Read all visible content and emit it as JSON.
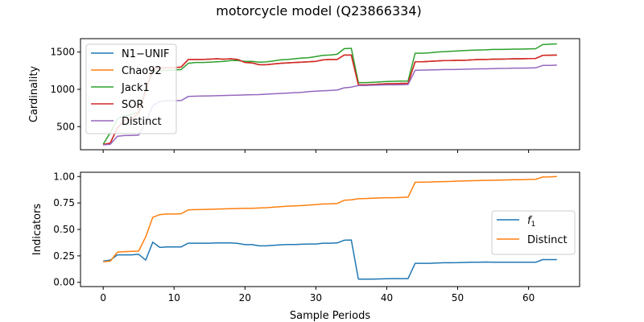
{
  "chart_data": {
    "type": "line",
    "title": "motorcycle model (Q23866334)",
    "xlabel": "Sample Periods",
    "colors": {
      "blue": "#1f77b4",
      "orange": "#ff7f0e",
      "green": "#2ca02c",
      "red": "#d62728",
      "purple": "#9467bd"
    },
    "panels": [
      {
        "ylabel": "Cardinality",
        "xlim": [
          -3.2,
          67.2
        ],
        "ylim": [
          190,
          1680
        ],
        "xticks": [
          0,
          10,
          20,
          30,
          40,
          50,
          60
        ],
        "yticks": [
          500,
          1000,
          1500
        ],
        "show_xtick_labels": false,
        "legend_position": "top-left",
        "series": [
          {
            "name": "N1−UNIF",
            "color": "#1f77b4",
            "x": [
              0,
              1,
              2,
              3,
              4,
              5,
              6,
              7,
              8,
              9,
              10,
              11,
              12,
              13,
              14,
              15,
              16,
              17,
              18,
              19,
              20,
              21,
              22,
              23,
              24,
              25,
              26,
              27,
              28,
              29,
              30,
              31,
              32,
              33,
              34,
              35,
              36,
              37,
              38,
              39,
              40,
              41,
              42,
              43,
              44,
              45,
              46,
              47,
              48,
              49,
              50,
              51,
              52,
              53,
              54,
              55,
              56,
              57,
              58,
              59,
              60,
              61,
              62,
              63,
              64
            ],
            "y": [
              260,
              280,
              480,
              590,
              600,
              680,
              980,
              1280,
              1285,
              1290,
              1290,
              1300,
              1400,
              1400,
              1400,
              1405,
              1410,
              1405,
              1410,
              1400,
              1360,
              1355,
              1330,
              1330,
              1340,
              1350,
              1355,
              1360,
              1365,
              1370,
              1375,
              1395,
              1400,
              1400,
              1460,
              1460,
              1060,
              1060,
              1065,
              1070,
              1075,
              1075,
              1080,
              1080,
              1370,
              1370,
              1375,
              1380,
              1385,
              1385,
              1390,
              1390,
              1395,
              1400,
              1400,
              1405,
              1405,
              1408,
              1410,
              1410,
              1412,
              1414,
              1455,
              1458,
              1460
            ]
          },
          {
            "name": "Chao92",
            "color": "#ff7f0e",
            "x": [
              0,
              1,
              2,
              3,
              4,
              5,
              6,
              7,
              8,
              9,
              10,
              11,
              12,
              13,
              14,
              15,
              16,
              17,
              18,
              19,
              20,
              21,
              22,
              23,
              24,
              25,
              26,
              27,
              28,
              29,
              30,
              31,
              32,
              33,
              34,
              35,
              36,
              37,
              38,
              39,
              40,
              41,
              42,
              43,
              44,
              45,
              46,
              47,
              48,
              49,
              50,
              51,
              52,
              53,
              54,
              55,
              56,
              57,
              58,
              59,
              60,
              61,
              62,
              63,
              64
            ],
            "y": [
              260,
              280,
              480,
              590,
              600,
              680,
              980,
              1280,
              1285,
              1290,
              1290,
              1300,
              1400,
              1400,
              1400,
              1405,
              1410,
              1405,
              1410,
              1400,
              1360,
              1355,
              1330,
              1330,
              1340,
              1350,
              1355,
              1360,
              1365,
              1370,
              1375,
              1395,
              1400,
              1400,
              1460,
              1460,
              1060,
              1060,
              1065,
              1070,
              1075,
              1075,
              1080,
              1080,
              1370,
              1370,
              1375,
              1380,
              1385,
              1385,
              1390,
              1390,
              1395,
              1400,
              1400,
              1405,
              1405,
              1408,
              1410,
              1410,
              1412,
              1414,
              1455,
              1458,
              1460
            ]
          },
          {
            "name": "Jack1",
            "color": "#2ca02c",
            "x": [
              0,
              1,
              2,
              3,
              4,
              5,
              6,
              7,
              8,
              9,
              10,
              11,
              12,
              13,
              14,
              15,
              16,
              17,
              18,
              19,
              20,
              21,
              22,
              23,
              24,
              25,
              26,
              27,
              28,
              29,
              30,
              31,
              32,
              33,
              34,
              35,
              36,
              37,
              38,
              39,
              40,
              41,
              42,
              43,
              44,
              45,
              46,
              47,
              48,
              49,
              50,
              51,
              52,
              53,
              54,
              55,
              56,
              57,
              58,
              59,
              60,
              61,
              62,
              63,
              64
            ],
            "y": [
              265,
              420,
              600,
              650,
              660,
              700,
              1000,
              1240,
              1250,
              1255,
              1260,
              1265,
              1350,
              1360,
              1360,
              1365,
              1370,
              1375,
              1385,
              1385,
              1375,
              1375,
              1365,
              1368,
              1380,
              1395,
              1400,
              1410,
              1420,
              1425,
              1440,
              1455,
              1460,
              1470,
              1545,
              1550,
              1090,
              1090,
              1095,
              1100,
              1105,
              1108,
              1110,
              1112,
              1485,
              1485,
              1490,
              1500,
              1505,
              1510,
              1515,
              1520,
              1525,
              1528,
              1530,
              1535,
              1535,
              1538,
              1540,
              1540,
              1542,
              1545,
              1600,
              1605,
              1610
            ]
          },
          {
            "name": "SOR",
            "color": "#d62728",
            "x": [
              0,
              1,
              2,
              3,
              4,
              5,
              6,
              7,
              8,
              9,
              10,
              11,
              12,
              13,
              14,
              15,
              16,
              17,
              18,
              19,
              20,
              21,
              22,
              23,
              24,
              25,
              26,
              27,
              28,
              29,
              30,
              31,
              32,
              33,
              34,
              35,
              36,
              37,
              38,
              39,
              40,
              41,
              42,
              43,
              44,
              45,
              46,
              47,
              48,
              49,
              50,
              51,
              52,
              53,
              54,
              55,
              56,
              57,
              58,
              59,
              60,
              61,
              62,
              63,
              64
            ],
            "y": [
              260,
              280,
              480,
              590,
              600,
              680,
              980,
              1280,
              1285,
              1290,
              1290,
              1300,
              1400,
              1400,
              1400,
              1405,
              1410,
              1405,
              1410,
              1400,
              1360,
              1355,
              1330,
              1330,
              1340,
              1350,
              1355,
              1360,
              1365,
              1370,
              1375,
              1395,
              1400,
              1400,
              1460,
              1460,
              1060,
              1060,
              1065,
              1070,
              1075,
              1075,
              1080,
              1080,
              1370,
              1370,
              1375,
              1380,
              1385,
              1385,
              1390,
              1390,
              1395,
              1400,
              1400,
              1405,
              1405,
              1408,
              1410,
              1410,
              1412,
              1414,
              1455,
              1458,
              1460
            ]
          },
          {
            "name": "Distinct",
            "color": "#9467bd",
            "x": [
              0,
              1,
              2,
              3,
              4,
              5,
              6,
              7,
              8,
              9,
              10,
              11,
              12,
              13,
              14,
              15,
              16,
              17,
              18,
              19,
              20,
              21,
              22,
              23,
              24,
              25,
              26,
              27,
              28,
              29,
              30,
              31,
              32,
              33,
              34,
              35,
              36,
              37,
              38,
              39,
              40,
              41,
              42,
              43,
              44,
              45,
              46,
              47,
              48,
              49,
              50,
              51,
              52,
              53,
              54,
              55,
              56,
              57,
              58,
              59,
              60,
              61,
              62,
              63,
              64
            ],
            "y": [
              255,
              262,
              370,
              380,
              382,
              385,
              560,
              780,
              838,
              845,
              848,
              850,
              905,
              908,
              910,
              912,
              915,
              918,
              920,
              922,
              925,
              928,
              930,
              935,
              940,
              945,
              950,
              955,
              960,
              970,
              975,
              980,
              985,
              990,
              1020,
              1030,
              1050,
              1052,
              1055,
              1058,
              1060,
              1060,
              1062,
              1065,
              1255,
              1258,
              1260,
              1262,
              1265,
              1265,
              1268,
              1270,
              1272,
              1275,
              1275,
              1278,
              1280,
              1282,
              1285,
              1285,
              1286,
              1288,
              1320,
              1322,
              1325
            ]
          }
        ]
      },
      {
        "ylabel": "Indicators",
        "xlim": [
          -3.2,
          67.2
        ],
        "ylim": [
          -0.04,
          1.04
        ],
        "xticks": [
          0,
          10,
          20,
          30,
          40,
          50,
          60
        ],
        "yticks": [
          0.0,
          0.25,
          0.5,
          0.75,
          1.0
        ],
        "show_xtick_labels": true,
        "legend_position": "center-right",
        "series": [
          {
            "name": "$f_1$",
            "color": "#1f77b4",
            "x": [
              0,
              1,
              2,
              3,
              4,
              5,
              6,
              7,
              8,
              9,
              10,
              11,
              12,
              13,
              14,
              15,
              16,
              17,
              18,
              19,
              20,
              21,
              22,
              23,
              24,
              25,
              26,
              27,
              28,
              29,
              30,
              31,
              32,
              33,
              34,
              35,
              36,
              37,
              38,
              39,
              40,
              41,
              42,
              43,
              44,
              45,
              46,
              47,
              48,
              49,
              50,
              51,
              52,
              53,
              54,
              55,
              56,
              57,
              58,
              59,
              60,
              61,
              62,
              63,
              64
            ],
            "y": [
              0.2,
              0.21,
              0.26,
              0.26,
              0.26,
              0.265,
              0.21,
              0.38,
              0.33,
              0.335,
              0.335,
              0.335,
              0.37,
              0.37,
              0.37,
              0.37,
              0.372,
              0.372,
              0.372,
              0.368,
              0.356,
              0.356,
              0.345,
              0.345,
              0.35,
              0.355,
              0.357,
              0.358,
              0.36,
              0.362,
              0.362,
              0.37,
              0.37,
              0.372,
              0.398,
              0.4,
              0.03,
              0.03,
              0.03,
              0.032,
              0.034,
              0.035,
              0.035,
              0.035,
              0.18,
              0.18,
              0.18,
              0.182,
              0.185,
              0.185,
              0.186,
              0.188,
              0.19,
              0.19,
              0.192,
              0.19,
              0.19,
              0.19,
              0.19,
              0.19,
              0.19,
              0.19,
              0.215,
              0.215,
              0.215
            ]
          },
          {
            "name": "Distinct",
            "color": "#ff7f0e",
            "x": [
              0,
              1,
              2,
              3,
              4,
              5,
              6,
              7,
              8,
              9,
              10,
              11,
              12,
              13,
              14,
              15,
              16,
              17,
              18,
              19,
              20,
              21,
              22,
              23,
              24,
              25,
              26,
              27,
              28,
              29,
              30,
              31,
              32,
              33,
              34,
              35,
              36,
              37,
              38,
              39,
              40,
              41,
              42,
              43,
              44,
              45,
              46,
              47,
              48,
              49,
              50,
              51,
              52,
              53,
              54,
              55,
              56,
              57,
              58,
              59,
              60,
              61,
              62,
              63,
              64
            ],
            "y": [
              0.195,
              0.2,
              0.285,
              0.29,
              0.292,
              0.295,
              0.43,
              0.615,
              0.64,
              0.645,
              0.645,
              0.648,
              0.685,
              0.687,
              0.688,
              0.69,
              0.692,
              0.694,
              0.696,
              0.698,
              0.7,
              0.7,
              0.702,
              0.705,
              0.71,
              0.715,
              0.72,
              0.722,
              0.725,
              0.73,
              0.735,
              0.74,
              0.742,
              0.745,
              0.775,
              0.78,
              0.79,
              0.792,
              0.794,
              0.797,
              0.8,
              0.8,
              0.802,
              0.805,
              0.945,
              0.947,
              0.948,
              0.95,
              0.952,
              0.953,
              0.956,
              0.958,
              0.96,
              0.962,
              0.963,
              0.965,
              0.966,
              0.968,
              0.97,
              0.97,
              0.972,
              0.974,
              0.995,
              0.997,
              1.0
            ]
          }
        ]
      }
    ]
  }
}
